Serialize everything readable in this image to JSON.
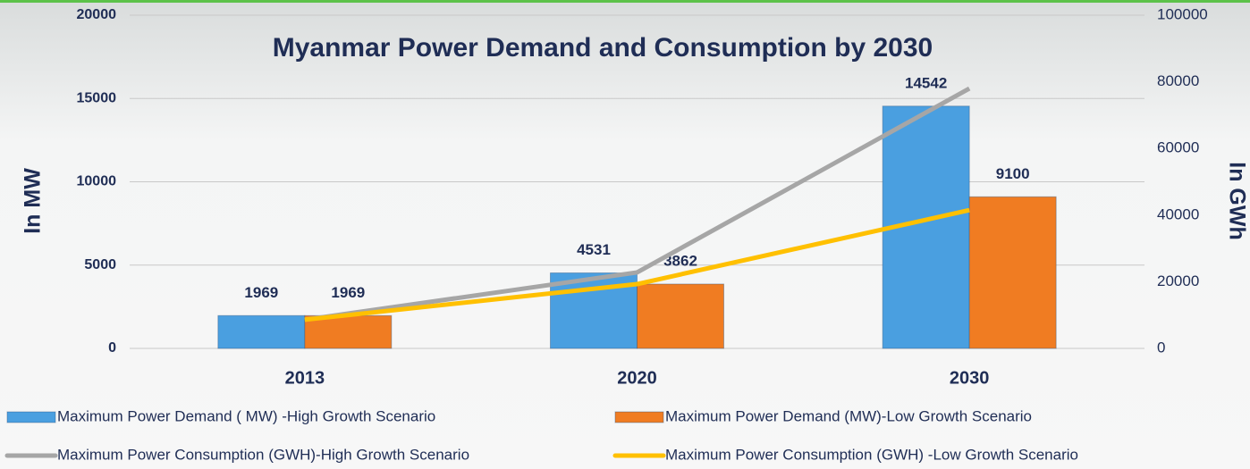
{
  "chart_data": {
    "type": "bar",
    "title": "Myanmar Power Demand and Consumption by 2030",
    "y_label": "In MW",
    "y2_label": "In GWh",
    "categories": [
      "2013",
      "2020",
      "2030"
    ],
    "series": [
      {
        "name": "Maximum Power Demand ( MW)  -High Growth Scenario",
        "type": "bar",
        "color": "#4a9fe0",
        "values": [
          1969,
          4531,
          14542
        ]
      },
      {
        "name": "Maximum Power Demand (MW)-Low Growth Scenario",
        "type": "bar",
        "color": "#f07c22",
        "values": [
          1969,
          3862,
          9100
        ]
      },
      {
        "name": "Maximum Power Consumption (GWH)-High Growth Scenario",
        "type": "line",
        "axis": "y2",
        "color": "#a6a6a6",
        "values": [
          8600,
          22800,
          78000
        ]
      },
      {
        "name": "Maximum Power Consumption (GWH) -Low Growth Scenario",
        "type": "line",
        "axis": "y2",
        "color": "#ffc000",
        "values": [
          8600,
          19300,
          41500
        ]
      }
    ],
    "ylim": [
      0,
      20000
    ],
    "yticks": [
      0,
      5000,
      10000,
      15000,
      20000
    ],
    "y2lim": [
      0,
      100000
    ],
    "y2ticks": [
      0,
      20000,
      40000,
      60000,
      80000,
      100000
    ],
    "grid": true
  }
}
